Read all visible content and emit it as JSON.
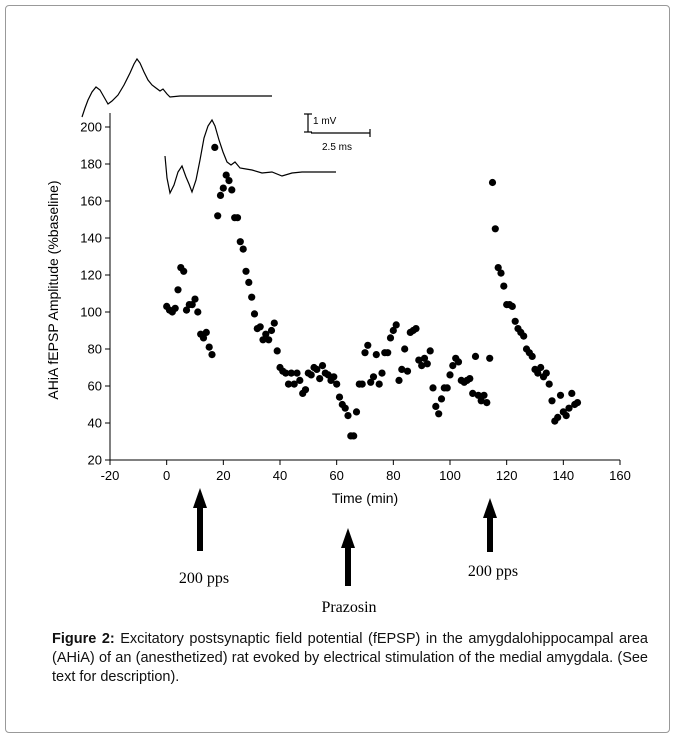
{
  "caption": {
    "label": "Figure 2:",
    "text": " Excitatory postsynaptic field potential (fEPSP) in the amygdalohippocampal area (AHiA) of an (anesthetized) rat evoked by electrical stimulation of the medial amygdala. (See text for description)."
  },
  "chart_data": {
    "type": "scatter",
    "title": "",
    "xlabel": "Time (min)",
    "ylabel": "AHiA fEPSP Amplitude (%baseline)",
    "xlim": [
      -20,
      160
    ],
    "ylim": [
      20,
      200
    ],
    "xticks": [
      -20,
      0,
      20,
      40,
      60,
      80,
      100,
      120,
      140,
      160
    ],
    "yticks": [
      20,
      40,
      60,
      80,
      100,
      120,
      140,
      160,
      180,
      200
    ],
    "grid": false,
    "marker_color": "#000000",
    "series": [
      {
        "points": [
          [
            0,
            103
          ],
          [
            1,
            101
          ],
          [
            2,
            100
          ],
          [
            3,
            102
          ],
          [
            4,
            112
          ],
          [
            5,
            124
          ],
          [
            6,
            122
          ],
          [
            7,
            101
          ],
          [
            8,
            104
          ],
          [
            9,
            104
          ],
          [
            10,
            107
          ],
          [
            11,
            100
          ],
          [
            12,
            88
          ],
          [
            13,
            86
          ],
          [
            14,
            89
          ],
          [
            15,
            81
          ],
          [
            16,
            77
          ],
          [
            17,
            189
          ],
          [
            18,
            152
          ],
          [
            19,
            163
          ],
          [
            20,
            167
          ],
          [
            21,
            174
          ],
          [
            22,
            171
          ],
          [
            23,
            166
          ],
          [
            24,
            151
          ],
          [
            25,
            151
          ],
          [
            26,
            138
          ],
          [
            27,
            134
          ],
          [
            28,
            122
          ],
          [
            29,
            116
          ],
          [
            30,
            108
          ],
          [
            31,
            99
          ],
          [
            32,
            91
          ],
          [
            33,
            92
          ],
          [
            34,
            85
          ],
          [
            35,
            88
          ],
          [
            36,
            85
          ],
          [
            37,
            90
          ],
          [
            38,
            94
          ],
          [
            39,
            79
          ],
          [
            40,
            70
          ],
          [
            41,
            68
          ],
          [
            42,
            67
          ],
          [
            43,
            61
          ],
          [
            44,
            67
          ],
          [
            45,
            61
          ],
          [
            46,
            67
          ],
          [
            47,
            63
          ],
          [
            48,
            56
          ],
          [
            49,
            58
          ],
          [
            50,
            67
          ],
          [
            51,
            66
          ],
          [
            52,
            70
          ],
          [
            53,
            69
          ],
          [
            54,
            64
          ],
          [
            55,
            71
          ],
          [
            56,
            67
          ],
          [
            57,
            66
          ],
          [
            58,
            63
          ],
          [
            59,
            65
          ],
          [
            60,
            61
          ],
          [
            61,
            54
          ],
          [
            62,
            50
          ],
          [
            63,
            48
          ],
          [
            64,
            44
          ],
          [
            65,
            33
          ],
          [
            66,
            33
          ],
          [
            67,
            46
          ],
          [
            68,
            61
          ],
          [
            69,
            61
          ],
          [
            70,
            78
          ],
          [
            71,
            82
          ],
          [
            72,
            62
          ],
          [
            73,
            65
          ],
          [
            74,
            77
          ],
          [
            75,
            61
          ],
          [
            76,
            67
          ],
          [
            77,
            78
          ],
          [
            78,
            78
          ],
          [
            79,
            86
          ],
          [
            80,
            90
          ],
          [
            81,
            93
          ],
          [
            82,
            63
          ],
          [
            83,
            69
          ],
          [
            84,
            80
          ],
          [
            85,
            68
          ],
          [
            86,
            89
          ],
          [
            87,
            90
          ],
          [
            88,
            91
          ],
          [
            89,
            74
          ],
          [
            90,
            71
          ],
          [
            91,
            75
          ],
          [
            92,
            72
          ],
          [
            93,
            79
          ],
          [
            94,
            59
          ],
          [
            95,
            49
          ],
          [
            96,
            45
          ],
          [
            97,
            53
          ],
          [
            98,
            59
          ],
          [
            99,
            59
          ],
          [
            100,
            66
          ],
          [
            101,
            71
          ],
          [
            102,
            75
          ],
          [
            103,
            73
          ],
          [
            104,
            63
          ],
          [
            105,
            62
          ],
          [
            106,
            63
          ],
          [
            107,
            64
          ],
          [
            108,
            56
          ],
          [
            109,
            76
          ],
          [
            110,
            55
          ],
          [
            111,
            52
          ],
          [
            112,
            55
          ],
          [
            113,
            51
          ],
          [
            114,
            75
          ],
          [
            115,
            170
          ],
          [
            116,
            145
          ],
          [
            117,
            124
          ],
          [
            118,
            121
          ],
          [
            119,
            114
          ],
          [
            120,
            104
          ],
          [
            121,
            104
          ],
          [
            122,
            103
          ],
          [
            123,
            95
          ],
          [
            124,
            91
          ],
          [
            125,
            89
          ],
          [
            126,
            87
          ],
          [
            127,
            80
          ],
          [
            128,
            78
          ],
          [
            129,
            76
          ],
          [
            130,
            69
          ],
          [
            131,
            67
          ],
          [
            132,
            70
          ],
          [
            133,
            65
          ],
          [
            134,
            67
          ],
          [
            135,
            61
          ],
          [
            136,
            52
          ],
          [
            137,
            41
          ],
          [
            138,
            43
          ],
          [
            139,
            55
          ],
          [
            140,
            46
          ],
          [
            141,
            44
          ],
          [
            142,
            48
          ],
          [
            143,
            56
          ],
          [
            144,
            50
          ],
          [
            145,
            51
          ]
        ]
      }
    ],
    "scale_bar": {
      "voltage_label": "1 mV",
      "time_label": "2.5 ms"
    },
    "annotations": [
      {
        "label": "200 pps",
        "x": 10
      },
      {
        "label": "Prazosin",
        "x": 63
      },
      {
        "label": "200 pps",
        "x": 115
      }
    ]
  }
}
